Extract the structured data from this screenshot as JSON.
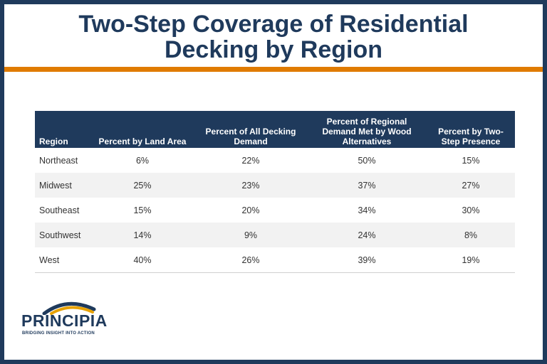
{
  "title": {
    "line1": "Two-Step Coverage of Residential",
    "line2": "Decking by Region"
  },
  "table": {
    "headers": {
      "region": "Region",
      "land_area": "Percent by Land Area",
      "decking_demand": "Percent of All Decking Demand",
      "wood_alternatives": "Percent of Regional Demand Met by Wood Alternatives",
      "two_step": "Percent by Two-Step Presence"
    },
    "rows": [
      {
        "region": "Northeast",
        "land_area": "6%",
        "decking_demand": "22%",
        "wood_alternatives": "50%",
        "two_step": "15%"
      },
      {
        "region": "Midwest",
        "land_area": "25%",
        "decking_demand": "23%",
        "wood_alternatives": "37%",
        "two_step": "27%"
      },
      {
        "region": "Southeast",
        "land_area": "15%",
        "decking_demand": "20%",
        "wood_alternatives": "34%",
        "two_step": "30%"
      },
      {
        "region": "Southwest",
        "land_area": "14%",
        "decking_demand": "9%",
        "wood_alternatives": "24%",
        "two_step": "8%"
      },
      {
        "region": "West",
        "land_area": "40%",
        "decking_demand": "26%",
        "wood_alternatives": "39%",
        "two_step": "19%"
      }
    ]
  },
  "logo": {
    "name": "PRINCIPIA",
    "tagline": "BRIDGING INSIGHT INTO ACTION"
  },
  "colors": {
    "navy": "#1f3a5c",
    "accent_orange": "#e07b00"
  }
}
